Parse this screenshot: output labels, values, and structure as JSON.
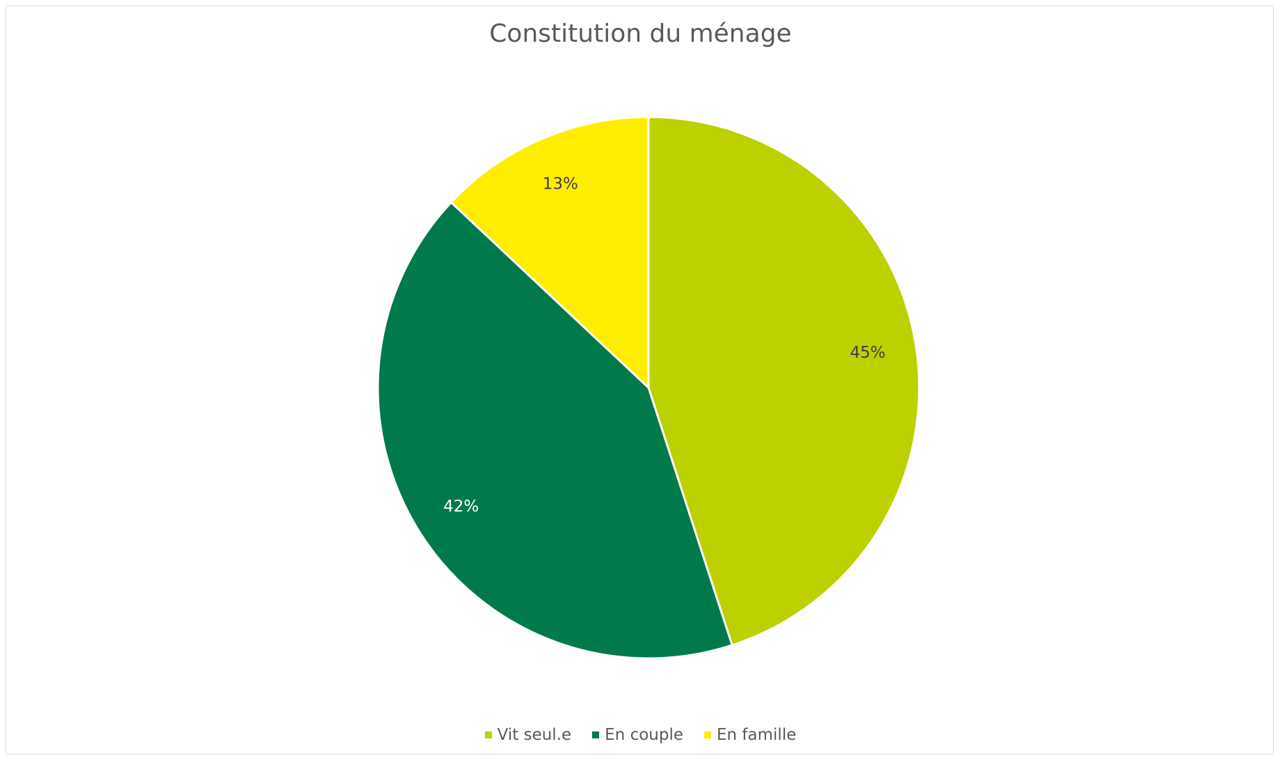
{
  "chart_data": {
    "type": "pie",
    "title": "Constitution du ménage",
    "categories": [
      "Vit seul.e",
      "En couple",
      "En famille"
    ],
    "values": [
      45,
      42,
      13
    ],
    "data_labels": [
      "45%",
      "42%",
      "13%"
    ],
    "colors": [
      "#bdd000",
      "#007a4b",
      "#ffed00"
    ],
    "label_colors": [
      "#404040",
      "#ffffff",
      "#404040"
    ],
    "start_angle": "12 o'clock",
    "direction": "clockwise",
    "legend_position": "bottom"
  }
}
